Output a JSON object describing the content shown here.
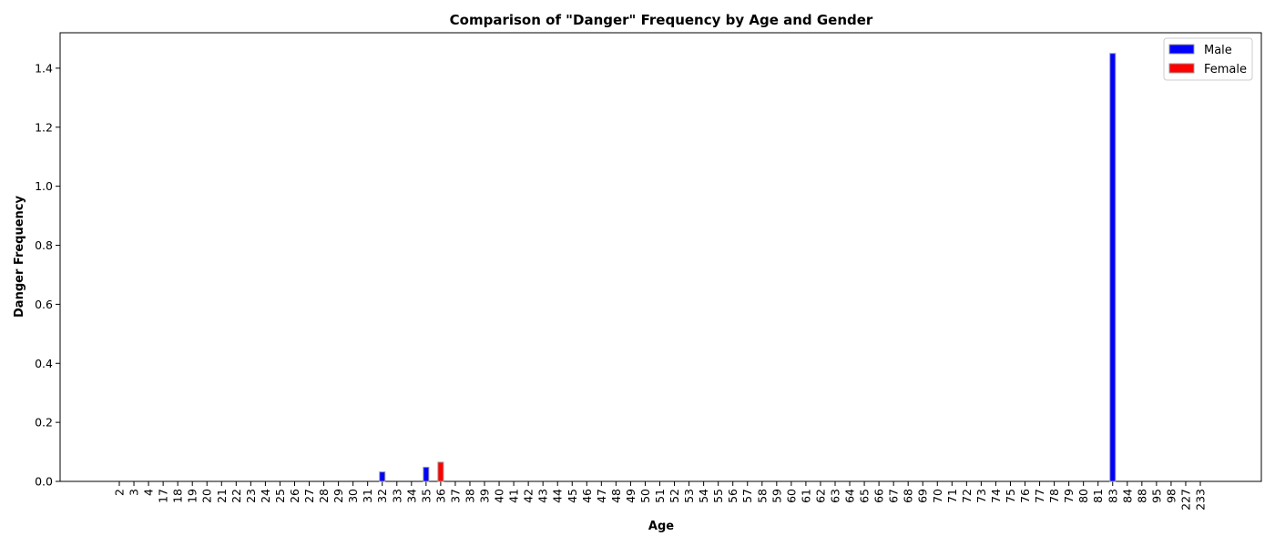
{
  "chart_data": {
    "type": "bar",
    "title": "Comparison of \"Danger\" Frequency by Age and Gender",
    "xlabel": "Age",
    "ylabel": "Danger Frequency",
    "ylim": [
      0,
      1.52
    ],
    "yticks": [
      0.0,
      0.2,
      0.4,
      0.6,
      0.8,
      1.0,
      1.2,
      1.4
    ],
    "ytick_labels": [
      "0.0",
      "0.2",
      "0.4",
      "0.6",
      "0.8",
      "1.0",
      "1.2",
      "1.4"
    ],
    "grid": false,
    "legend_position": "top-right",
    "categories": [
      "2",
      "3",
      "4",
      "17",
      "18",
      "19",
      "20",
      "21",
      "22",
      "23",
      "24",
      "25",
      "26",
      "27",
      "28",
      "29",
      "30",
      "31",
      "32",
      "33",
      "34",
      "35",
      "36",
      "37",
      "38",
      "39",
      "40",
      "41",
      "42",
      "43",
      "44",
      "45",
      "46",
      "47",
      "48",
      "49",
      "50",
      "51",
      "52",
      "53",
      "54",
      "55",
      "56",
      "57",
      "58",
      "59",
      "60",
      "61",
      "62",
      "63",
      "64",
      "65",
      "66",
      "67",
      "68",
      "69",
      "70",
      "71",
      "72",
      "73",
      "74",
      "75",
      "76",
      "77",
      "78",
      "79",
      "80",
      "81",
      "83",
      "84",
      "88",
      "95",
      "98",
      "227",
      "233"
    ],
    "series": [
      {
        "name": "Male",
        "color": "#0000ff",
        "values": [
          0,
          0,
          0,
          0,
          0,
          0,
          0,
          0,
          0,
          0,
          0,
          0,
          0,
          0,
          0,
          0,
          0,
          0,
          0.032,
          0,
          0,
          0.048,
          0,
          0,
          0,
          0,
          0,
          0,
          0,
          0,
          0,
          0,
          0,
          0,
          0,
          0,
          0,
          0,
          0,
          0,
          0,
          0,
          0,
          0,
          0,
          0,
          0,
          0,
          0,
          0,
          0,
          0,
          0,
          0,
          0,
          0,
          0,
          0,
          0,
          0,
          0,
          0,
          0,
          0,
          0,
          0,
          0,
          0,
          1.45,
          0,
          0,
          0,
          0,
          0,
          0
        ]
      },
      {
        "name": "Female",
        "color": "#ff0000",
        "values": [
          0,
          0,
          0,
          0,
          0,
          0,
          0,
          0,
          0,
          0,
          0,
          0,
          0,
          0,
          0,
          0,
          0,
          0,
          0,
          0,
          0,
          0,
          0.065,
          0,
          0,
          0,
          0,
          0,
          0,
          0,
          0,
          0,
          0,
          0,
          0,
          0,
          0,
          0,
          0,
          0,
          0,
          0,
          0,
          0,
          0,
          0,
          0,
          0,
          0,
          0,
          0,
          0,
          0,
          0,
          0,
          0,
          0,
          0,
          0,
          0,
          0,
          0,
          0,
          0,
          0,
          0,
          0,
          0,
          0,
          0,
          0,
          0,
          0,
          0,
          0
        ]
      }
    ]
  }
}
